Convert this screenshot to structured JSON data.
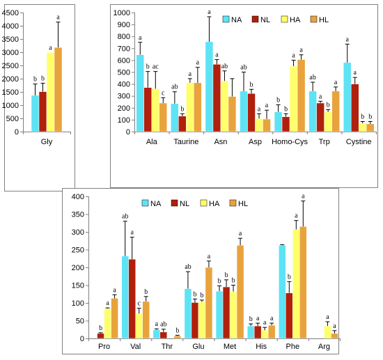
{
  "chart_data": [
    {
      "id": "gly",
      "type": "bar",
      "categories": [
        "Gly"
      ],
      "ylim": [
        0,
        4500
      ],
      "yticks": [
        0,
        500,
        1000,
        1500,
        2000,
        2500,
        3000,
        3500,
        4000,
        4500
      ],
      "legend": false,
      "series": [
        {
          "name": "NA",
          "values": [
            1370
          ],
          "errors": [
            430
          ],
          "labels": [
            "b"
          ]
        },
        {
          "name": "NL",
          "values": [
            1510
          ],
          "errors": [
            320
          ],
          "labels": [
            "b"
          ]
        },
        {
          "name": "HA",
          "values": [
            2990
          ],
          "errors": [
            0
          ],
          "labels": [
            "a"
          ]
        },
        {
          "name": "HL",
          "values": [
            3180
          ],
          "errors": [
            960
          ],
          "labels": [
            "a"
          ]
        }
      ]
    },
    {
      "id": "aa1",
      "type": "bar",
      "categories": [
        "Ala",
        "Taurine",
        "Asn",
        "Asp",
        "Homo-Cys",
        "Trp",
        "Cystine"
      ],
      "ylim": [
        0,
        1000
      ],
      "yticks": [
        0,
        100,
        200,
        300,
        400,
        500,
        600,
        700,
        800,
        900,
        1000
      ],
      "legend": true,
      "legend_position": "top-right",
      "series": [
        {
          "name": "NA",
          "values": [
            645,
            235,
            755,
            340,
            165,
            340,
            580
          ],
          "errors": [
            105,
            100,
            210,
            160,
            60,
            75,
            155
          ],
          "labels": [
            "a",
            "ab",
            "a",
            "ab",
            "b",
            "ab",
            "a"
          ]
        },
        {
          "name": "NL",
          "values": [
            370,
            130,
            565,
            320,
            125,
            240,
            400
          ],
          "errors": [
            135,
            20,
            40,
            35,
            25,
            15,
            55
          ],
          "labels": [
            "b",
            "b",
            "a",
            "b",
            "b",
            "a",
            "a"
          ]
        },
        {
          "name": "HA",
          "values": [
            360,
            410,
            425,
            110,
            550,
            165,
            70
          ],
          "errors": [
            145,
            35,
            85,
            40,
            50,
            20,
            15
          ],
          "labels": [
            "ac",
            "a",
            "ab",
            "a",
            "a",
            "b",
            "b"
          ]
        },
        {
          "name": "HL",
          "values": [
            240,
            410,
            295,
            105,
            605,
            340,
            65
          ],
          "errors": [
            45,
            130,
            150,
            75,
            40,
            35,
            20
          ],
          "labels": [
            "c",
            "a",
            "",
            "a",
            "a",
            "a",
            "b"
          ]
        }
      ]
    },
    {
      "id": "aa2",
      "type": "bar",
      "categories": [
        "Pro",
        "Val",
        "Thr",
        "Glu",
        "Met",
        "His",
        "Phe",
        "Arg"
      ],
      "ylim": [
        0,
        400
      ],
      "yticks": [
        0,
        50,
        100,
        150,
        200,
        250,
        300,
        350,
        400
      ],
      "legend": true,
      "legend_position": "top",
      "series": [
        {
          "name": "NA",
          "values": [
            0,
            232,
            24,
            140,
            133,
            35,
            262,
            0
          ],
          "errors": [
            0,
            98,
            3,
            48,
            15,
            6,
            2,
            0
          ],
          "labels": [
            "",
            "ab",
            "a",
            "ab",
            "b",
            "b",
            "",
            ""
          ]
        },
        {
          "name": "NL",
          "values": [
            14,
            223,
            18,
            101,
            145,
            35,
            128,
            0
          ],
          "errors": [
            2,
            62,
            8,
            10,
            20,
            8,
            32,
            0
          ],
          "labels": [
            "b",
            "a",
            "ab",
            "b",
            "b",
            "a",
            "b",
            ""
          ]
        },
        {
          "name": "HA",
          "values": [
            84,
            70,
            0,
            103,
            132,
            23,
            307,
            35
          ],
          "errors": [
            2,
            15,
            0,
            5,
            18,
            8,
            25,
            12
          ],
          "labels": [
            "a",
            "c",
            "",
            "b",
            "b",
            "a",
            "a",
            "a"
          ]
        },
        {
          "name": "HL",
          "values": [
            113,
            104,
            7,
            200,
            262,
            37,
            315,
            14
          ],
          "errors": [
            10,
            14,
            2,
            18,
            20,
            6,
            72,
            8
          ],
          "labels": [
            "a",
            "b",
            "b",
            "a",
            "a",
            "a",
            "a",
            "a"
          ]
        }
      ]
    }
  ],
  "colors": {
    "NA": "#5ee3f5",
    "NL": "#b0200c",
    "HA": "#ffff6b",
    "HL": "#e8a33d"
  }
}
